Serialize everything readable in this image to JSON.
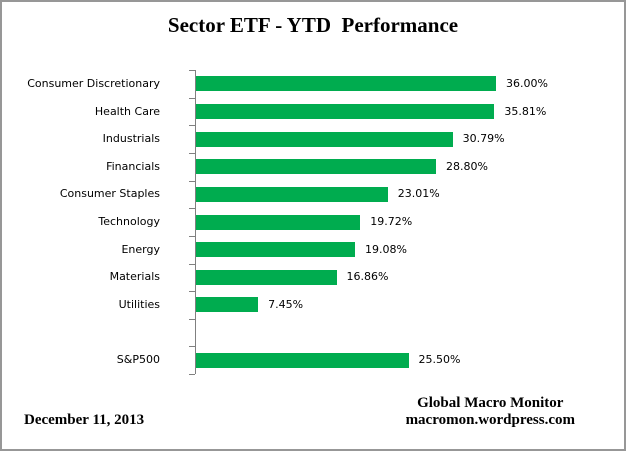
{
  "title": "Sector ETF - YTD  Performance",
  "footer": {
    "date": "December 11, 2013",
    "source_line1": "Global Macro Monitor",
    "source_line2": "macromon.wordpress.com"
  },
  "colors": {
    "bar": "#00AC4F",
    "axis": "#808080",
    "border": "#979797",
    "text": "#000000"
  },
  "chart_data": {
    "type": "bar",
    "orientation": "horizontal",
    "title": "Sector ETF - YTD  Performance",
    "categories": [
      "Consumer Discretionary",
      "Health Care",
      "Industrials",
      "Financials",
      "Consumer Staples",
      "Technology",
      "Energy",
      "Materials",
      "Utilities",
      "",
      "S&P500"
    ],
    "values": [
      36.0,
      35.81,
      30.79,
      28.8,
      23.01,
      19.72,
      19.08,
      16.86,
      7.45,
      null,
      25.5
    ],
    "value_labels": [
      "36.00%",
      "35.81%",
      "30.79%",
      "28.80%",
      "23.01%",
      "19.72%",
      "19.08%",
      "16.86%",
      "7.45%",
      "",
      "25.50%"
    ],
    "xlim": [
      0,
      36.6
    ],
    "grid": false,
    "legend": false,
    "value_labels_shown": true,
    "bar_color": "#00AC4F"
  }
}
